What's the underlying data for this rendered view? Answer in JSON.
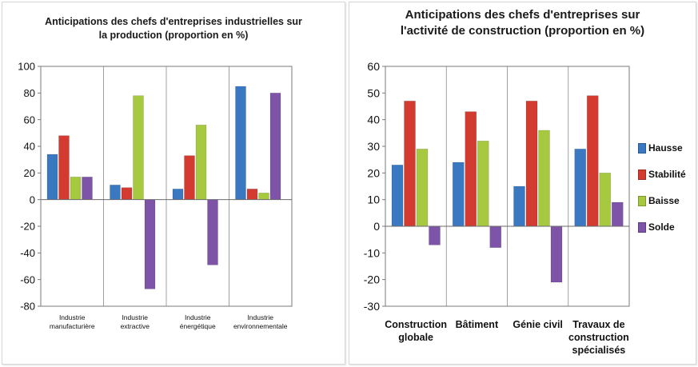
{
  "colors": {
    "Hausse": "#3a78c2",
    "Stabilité": "#d33b30",
    "Baisse": "#a7c940",
    "Solde": "#7d54a8"
  },
  "chart_data": [
    {
      "type": "bar",
      "title": [
        "Anticipations des chefs d'entreprises industrielles sur",
        "la production  (proportion en %)"
      ],
      "categories": [
        [
          "Industrie",
          "manufacturière"
        ],
        [
          "Industrie",
          "extractive"
        ],
        [
          "Industrie",
          "énergétique"
        ],
        [
          "Industrie",
          "environnementale"
        ]
      ],
      "legend": [
        "Hauss",
        "Stabili",
        "Baisse",
        "Solde"
      ],
      "series": [
        {
          "name": "Hausse",
          "values": [
            34,
            11,
            8,
            85
          ]
        },
        {
          "name": "Stabilité",
          "values": [
            48,
            9,
            33,
            8
          ]
        },
        {
          "name": "Baisse",
          "values": [
            17,
            78,
            56,
            5
          ]
        },
        {
          "name": "Solde",
          "values": [
            17,
            -67,
            -49,
            80
          ]
        }
      ],
      "ylim": [
        -80,
        100
      ],
      "yticks": [
        -80,
        -60,
        -40,
        -20,
        0,
        20,
        40,
        60,
        80,
        100
      ],
      "legend_position": "right"
    },
    {
      "type": "bar",
      "title": [
        "Anticipations  des chefs d'entreprises sur",
        "l'activité  de construction (proportion en %)"
      ],
      "categories": [
        [
          "Construction",
          "globale"
        ],
        [
          "Bâtiment"
        ],
        [
          "Génie civil"
        ],
        [
          "Travaux de",
          "construction",
          "spécialisés"
        ]
      ],
      "legend": [
        "Hausse",
        "Stabilité",
        "Baisse",
        "Solde"
      ],
      "series": [
        {
          "name": "Hausse",
          "values": [
            23,
            24,
            15,
            29
          ]
        },
        {
          "name": "Stabilité",
          "values": [
            47,
            43,
            47,
            49
          ]
        },
        {
          "name": "Baisse",
          "values": [
            29,
            32,
            36,
            20
          ]
        },
        {
          "name": "Solde",
          "values": [
            -7,
            -8,
            -21,
            9
          ]
        }
      ],
      "ylim": [
        -30,
        60
      ],
      "yticks": [
        -30,
        -20,
        -10,
        0,
        10,
        20,
        30,
        40,
        50,
        60
      ],
      "legend_position": "right"
    }
  ]
}
